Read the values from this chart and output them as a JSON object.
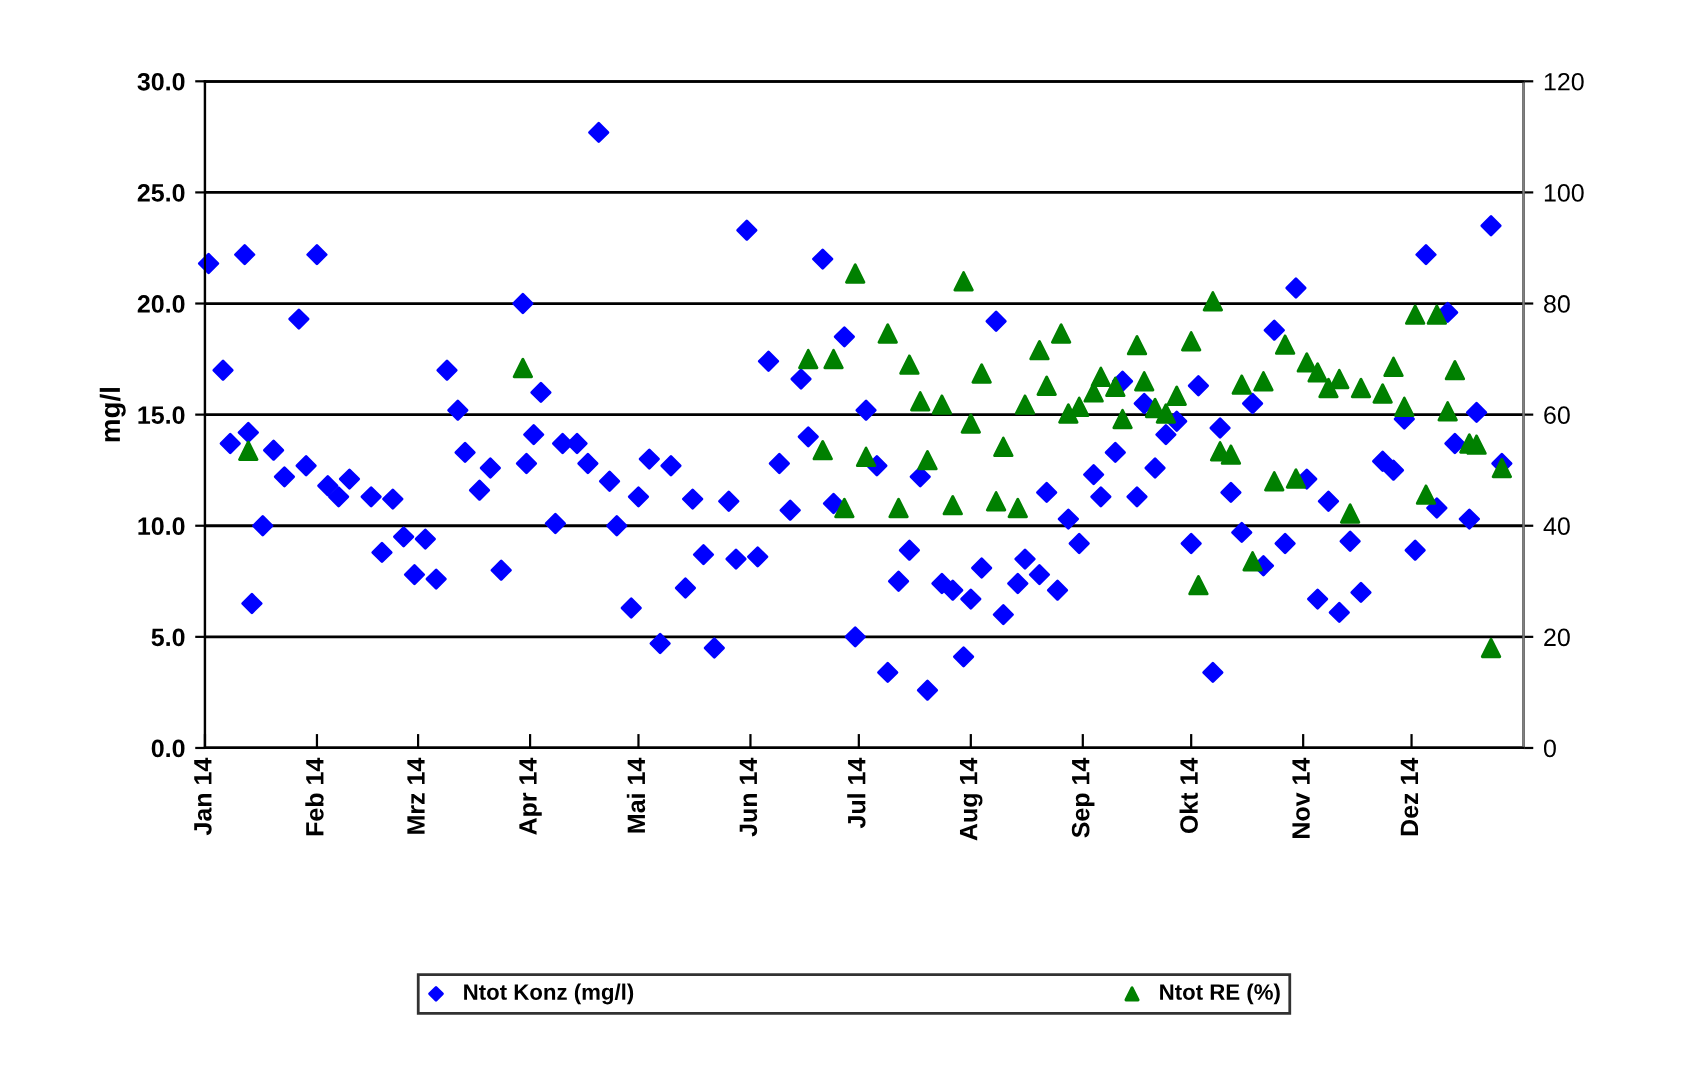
{
  "chart_data": {
    "type": "scatter",
    "ylabel": "mg/l",
    "xlim": [
      "2014-01-01",
      "2015-01-01"
    ],
    "xticks": [
      {
        "value": "2014-01-01",
        "label": "Jan 14"
      },
      {
        "value": "2014-02-01",
        "label": "Feb 14"
      },
      {
        "value": "2014-03-01",
        "label": "Mrz 14"
      },
      {
        "value": "2014-04-01",
        "label": "Apr 14"
      },
      {
        "value": "2014-05-01",
        "label": "Mai 14"
      },
      {
        "value": "2014-06-01",
        "label": "Jun 14"
      },
      {
        "value": "2014-07-01",
        "label": "Jul 14"
      },
      {
        "value": "2014-08-01",
        "label": "Aug 14"
      },
      {
        "value": "2014-09-01",
        "label": "Sep 14"
      },
      {
        "value": "2014-10-01",
        "label": "Okt 14"
      },
      {
        "value": "2014-11-01",
        "label": "Nov 14"
      },
      {
        "value": "2014-12-01",
        "label": "Dez 14"
      }
    ],
    "ylim": [
      0,
      30
    ],
    "yticks": [
      {
        "value": 0,
        "label": "0.0"
      },
      {
        "value": 5,
        "label": "5.0"
      },
      {
        "value": 10,
        "label": "10.0"
      },
      {
        "value": 15,
        "label": "15.0"
      },
      {
        "value": 20,
        "label": "20.0"
      },
      {
        "value": 25,
        "label": "25.0"
      },
      {
        "value": 30,
        "label": "30.0"
      }
    ],
    "y2lim": [
      0,
      120
    ],
    "y2ticks": [
      0,
      20,
      40,
      60,
      80,
      100,
      120
    ],
    "grid": "y",
    "legend": "bottom",
    "series": [
      {
        "name": "Ntot Konz (mg/l)",
        "color": "#0000ff",
        "marker": "diamond",
        "x": [
          "2014-01-02",
          "2014-01-06",
          "2014-01-08",
          "2014-01-12",
          "2014-01-13",
          "2014-01-14",
          "2014-01-17",
          "2014-01-20",
          "2014-01-23",
          "2014-01-27",
          "2014-01-29",
          "2014-02-01",
          "2014-02-04",
          "2014-02-07",
          "2014-02-10",
          "2014-02-16",
          "2014-02-19",
          "2014-02-22",
          "2014-02-25",
          "2014-02-28",
          "2014-03-03",
          "2014-03-06",
          "2014-03-09",
          "2014-03-12",
          "2014-03-14",
          "2014-03-18",
          "2014-03-21",
          "2014-03-24",
          "2014-03-30",
          "2014-03-31",
          "2014-04-02",
          "2014-04-04",
          "2014-04-08",
          "2014-04-10",
          "2014-04-14",
          "2014-04-17",
          "2014-04-20",
          "2014-04-23",
          "2014-04-25",
          "2014-04-29",
          "2014-05-01",
          "2014-05-04",
          "2014-05-07",
          "2014-05-10",
          "2014-05-14",
          "2014-05-16",
          "2014-05-19",
          "2014-05-22",
          "2014-05-26",
          "2014-05-28",
          "2014-05-31",
          "2014-06-03",
          "2014-06-06",
          "2014-06-09",
          "2014-06-12",
          "2014-06-15",
          "2014-06-17",
          "2014-06-21",
          "2014-06-24",
          "2014-06-27",
          "2014-06-30",
          "2014-07-03",
          "2014-07-06",
          "2014-07-09",
          "2014-07-12",
          "2014-07-15",
          "2014-07-18",
          "2014-07-20",
          "2014-07-24",
          "2014-07-27",
          "2014-07-30",
          "2014-08-01",
          "2014-08-04",
          "2014-08-08",
          "2014-08-10",
          "2014-08-14",
          "2014-08-16",
          "2014-08-20",
          "2014-08-22",
          "2014-08-25",
          "2014-08-28",
          "2014-08-31",
          "2014-09-04",
          "2014-09-06",
          "2014-09-10",
          "2014-09-12",
          "2014-09-16",
          "2014-09-18",
          "2014-09-21",
          "2014-09-24",
          "2014-09-27",
          "2014-10-01",
          "2014-10-03",
          "2014-10-07",
          "2014-10-09",
          "2014-10-12",
          "2014-10-15",
          "2014-10-18",
          "2014-10-21",
          "2014-10-24",
          "2014-10-27",
          "2014-10-30",
          "2014-11-02",
          "2014-11-05",
          "2014-11-08",
          "2014-11-11",
          "2014-11-14",
          "2014-11-17",
          "2014-11-23",
          "2014-11-26",
          "2014-11-29",
          "2014-12-02",
          "2014-12-05",
          "2014-12-08",
          "2014-12-11",
          "2014-12-13",
          "2014-12-17",
          "2014-12-19",
          "2014-12-23",
          "2014-12-26"
        ],
        "values": [
          21.8,
          17.0,
          13.7,
          22.2,
          14.2,
          6.5,
          10.0,
          13.4,
          12.2,
          19.3,
          12.7,
          22.2,
          11.8,
          11.3,
          12.1,
          11.3,
          8.8,
          11.2,
          9.5,
          7.8,
          9.4,
          7.6,
          17.0,
          15.2,
          13.3,
          11.6,
          12.6,
          8.0,
          20.0,
          12.8,
          14.1,
          16.0,
          10.1,
          13.7,
          13.7,
          12.8,
          27.7,
          12.0,
          10.0,
          6.3,
          11.3,
          13.0,
          4.7,
          12.7,
          7.2,
          11.2,
          8.7,
          4.5,
          11.1,
          8.5,
          23.3,
          8.6,
          17.4,
          12.8,
          10.7,
          16.6,
          14.0,
          22.0,
          11.0,
          18.5,
          5.0,
          15.2,
          12.7,
          3.4,
          7.5,
          8.9,
          12.2,
          2.6,
          7.4,
          7.1,
          4.1,
          6.7,
          8.1,
          19.2,
          6.0,
          7.4,
          8.5,
          7.8,
          11.5,
          7.1,
          10.3,
          9.2,
          12.3,
          11.3,
          13.3,
          16.5,
          11.3,
          15.5,
          12.6,
          14.1,
          14.7,
          9.2,
          16.3,
          3.4,
          14.4,
          11.5,
          9.7,
          15.5,
          8.2,
          18.8,
          9.2,
          20.7,
          12.1,
          6.7,
          11.1,
          6.1,
          9.3,
          7.0,
          12.9,
          12.5,
          14.8,
          8.9,
          22.2,
          10.8,
          19.6,
          13.7,
          10.3,
          15.1,
          23.5,
          12.8
        ]
      },
      {
        "name": "Ntot RE (%)",
        "color": "#008000",
        "marker": "triangle",
        "axis": "y2",
        "x": [
          "2014-01-13",
          "2014-03-30",
          "2014-06-17",
          "2014-06-21",
          "2014-06-24",
          "2014-06-27",
          "2014-06-30",
          "2014-07-03",
          "2014-07-09",
          "2014-07-12",
          "2014-07-15",
          "2014-07-18",
          "2014-07-20",
          "2014-07-24",
          "2014-07-27",
          "2014-07-30",
          "2014-08-01",
          "2014-08-04",
          "2014-08-08",
          "2014-08-10",
          "2014-08-14",
          "2014-08-16",
          "2014-08-20",
          "2014-08-22",
          "2014-08-26",
          "2014-08-28",
          "2014-08-31",
          "2014-09-04",
          "2014-09-06",
          "2014-09-10",
          "2014-09-12",
          "2014-09-16",
          "2014-09-18",
          "2014-09-21",
          "2014-09-24",
          "2014-09-27",
          "2014-10-01",
          "2014-10-03",
          "2014-10-07",
          "2014-10-09",
          "2014-10-12",
          "2014-10-15",
          "2014-10-18",
          "2014-10-21",
          "2014-10-24",
          "2014-10-27",
          "2014-10-30",
          "2014-11-02",
          "2014-11-05",
          "2014-11-08",
          "2014-11-11",
          "2014-11-14",
          "2014-11-17",
          "2014-11-23",
          "2014-11-26",
          "2014-11-29",
          "2014-12-02",
          "2014-12-05",
          "2014-12-08",
          "2014-12-11",
          "2014-12-13",
          "2014-12-17",
          "2014-12-19",
          "2014-12-23",
          "2014-12-26"
        ],
        "values": [
          53.5,
          68.4,
          70,
          53.6,
          70,
          43.2,
          85.4,
          52.4,
          74.6,
          43.2,
          69,
          62.4,
          51.8,
          61.8,
          43.7,
          84,
          58.4,
          67.4,
          44.4,
          54.2,
          43.2,
          61.8,
          71.6,
          65.2,
          74.6,
          60.2,
          61.4,
          64,
          66.8,
          65,
          59.2,
          72.5,
          66,
          61.2,
          60.2,
          63.4,
          73.2,
          29.3,
          80.4,
          53.4,
          52.8,
          65.4,
          33.6,
          66,
          48,
          72.6,
          48.5,
          69.4,
          67.6,
          64.8,
          66.4,
          42.2,
          64.8,
          63.8,
          68.6,
          61.4,
          78,
          45.6,
          78,
          60.6,
          68,
          54.8,
          54.6,
          18,
          50.4
        ]
      }
    ]
  }
}
